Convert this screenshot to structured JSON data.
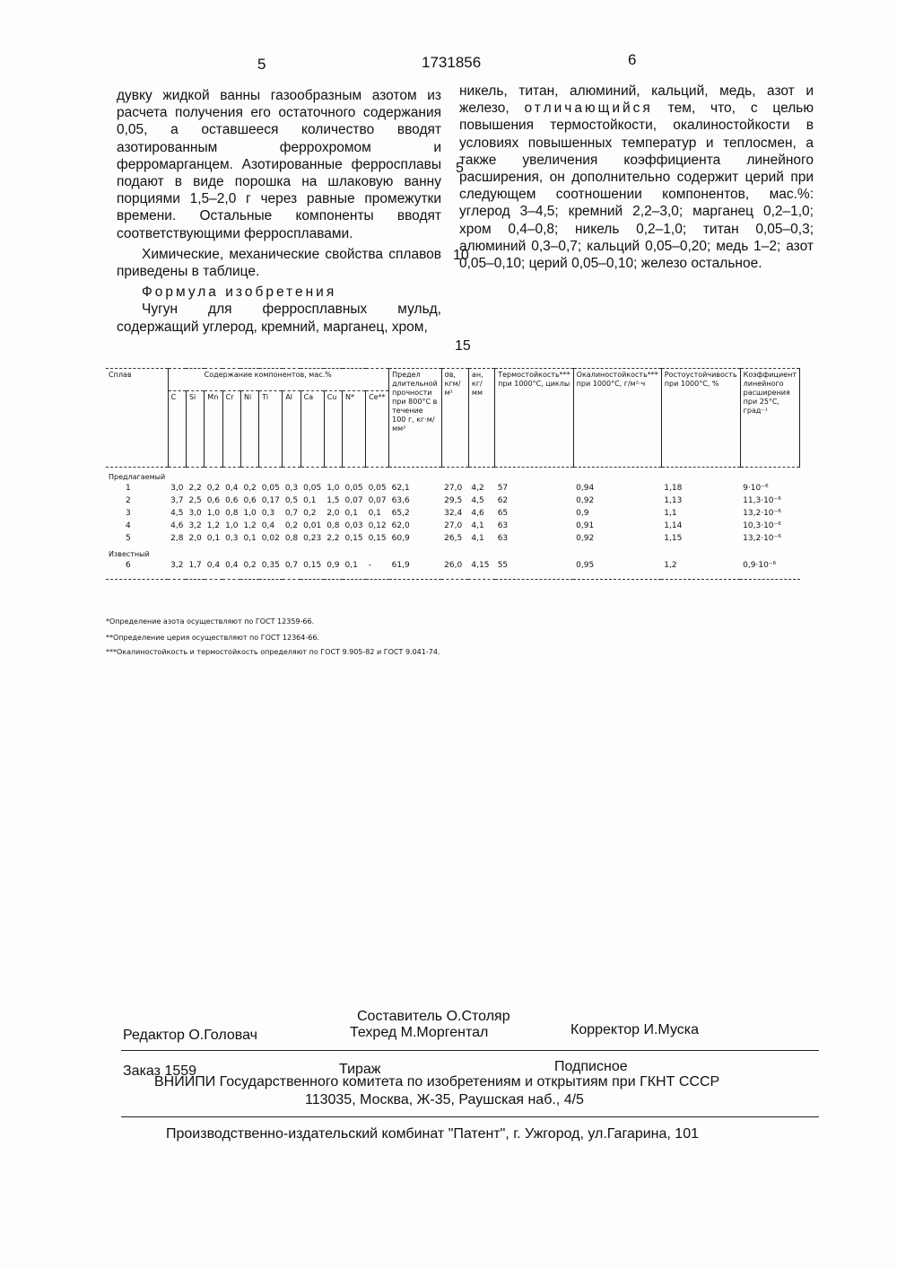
{
  "header": {
    "page_left": "5",
    "patent_number": "1731856",
    "page_right": "6"
  },
  "left_column": {
    "p1": "дувку жидкой ванны газообразным азотом из расчета получения его остаточного содержания 0,05, а оставшееся количество вводят азотированным феррохромом и ферромарганцем. Азотированные ферросплавы подают в виде порошка на шлаковую ванну порциями 1,5–2,0 г через равные промежутки времени. Остальные компоненты вводят соответствующими ферросплавами.",
    "p2": "Химические, механические свойства сплавов приведены в таблице.",
    "heading": "Формула изобретения",
    "p3": "Чугун для ферросплавных мульд, содержащий углерод, кремний, марганец, хром,"
  },
  "right_column": {
    "text_a": "никель, титан, алюминий, кальций, медь, азот и железо,",
    "distinguished": "отличающийся",
    "text_b": "тем, что, с целью повышения термостойкости, окалиностойкости в условиях повышенных температур и теплосмен, а также увеличения коэффициента линейного расширения, он дополнительно содержит церий при следующем соотношении компонентов, мас.%: углерод 3–4,5; кремний 2,2–3,0; марганец 0,2–1,0; хром 0,4–0,8; никель 0,2–1,0; титан 0,05–0,3; алюминий 0,3–0,7; кальций 0,05–0,20; медь 1–2; азот 0,05–0,10; церий 0,05–0,10; железо остальное."
  },
  "line_numbers": [
    "5",
    "10",
    "15"
  ],
  "table": {
    "col_alloy": "Сплав",
    "group_header": "Содержание компонентов, мас.%",
    "components": [
      "C",
      "Si",
      "Mn",
      "Cr",
      "Ni",
      "Ti",
      "Al",
      "Ca",
      "Cu",
      "N*",
      "Ce**"
    ],
    "props": [
      "Предел длительной прочности при 800°C в течение 100 г, кг·м/мм²",
      "σв, кгм/м²",
      "aн, кг/мм",
      "Термостойкость*** при 1000°C, циклы",
      "Окалиностойкость*** при 1000°C, г/м²·ч",
      "Ростоустойчивость при 1000°C, %",
      "Коэффициент линейного расширения при 25°C, град⁻¹"
    ],
    "group_proposed": "Предлагаемый",
    "group_known": "Известный",
    "rows": [
      {
        "id": "1",
        "values": [
          "3,0",
          "2,2",
          "0,2",
          "0,4",
          "0,2",
          "0,05",
          "0,3",
          "0,05",
          "1,0",
          "0,05",
          "0,05",
          "62,1",
          "27,0",
          "4,2",
          "57",
          "0,94",
          "1,18",
          "9·10⁻⁶"
        ]
      },
      {
        "id": "2",
        "values": [
          "3,7",
          "2,5",
          "0,6",
          "0,6",
          "0,6",
          "0,17",
          "0,5",
          "0,1",
          "1,5",
          "0,07",
          "0,07",
          "63,6",
          "29,5",
          "4,5",
          "62",
          "0,92",
          "1,13",
          "11,3·10⁻⁶"
        ]
      },
      {
        "id": "3",
        "values": [
          "4,5",
          "3,0",
          "1,0",
          "0,8",
          "1,0",
          "0,3",
          "0,7",
          "0,2",
          "2,0",
          "0,1",
          "0,1",
          "65,2",
          "32,4",
          "4,6",
          "65",
          "0,9",
          "1,1",
          "13,2·10⁻⁶"
        ]
      },
      {
        "id": "4",
        "values": [
          "4,6",
          "3,2",
          "1,2",
          "1,0",
          "1,2",
          "0,4",
          "0,2",
          "0,01",
          "0,8",
          "0,03",
          "0,12",
          "62,0",
          "27,0",
          "4,1",
          "63",
          "0,91",
          "1,14",
          "10,3·10⁻⁶"
        ]
      },
      {
        "id": "5",
        "values": [
          "2,8",
          "2,0",
          "0,1",
          "0,3",
          "0,1",
          "0,02",
          "0,8",
          "0,23",
          "2,2",
          "0,15",
          "0,15",
          "60,9",
          "26,5",
          "4,1",
          "63",
          "0,92",
          "1,15",
          "13,2·10⁻⁶"
        ]
      },
      {
        "id": "6",
        "values": [
          "3,2",
          "1,7",
          "0,4",
          "0,4",
          "0,2",
          "0,35",
          "0,7",
          "0,15",
          "0,9",
          "0,1",
          "-",
          "61,9",
          "26,0",
          "4,15",
          "55",
          "0,95",
          "1,2",
          "0,9·10⁻⁶"
        ]
      }
    ],
    "footnotes": [
      "*Определение азота осуществляют по ГОСТ 12359-66.",
      "**Определение церия осуществляют по ГОСТ 12364-66.",
      "***Окалиностойкость и термостойкость определяют по ГОСТ 9.905-82 и ГОСТ 9.041-74."
    ]
  },
  "colophon": {
    "compiler": "Составитель О.Столяр",
    "editor": "Редактор О.Головач",
    "techred": "Техред М.Моргентал",
    "corrector": "Корректор  И.Муска",
    "order": "Заказ 1559",
    "circulation": "Тираж",
    "subscription": "Подписное",
    "institute": "ВНИИПИ Государственного комитета по изобретениям и открытиям при ГКНТ СССР",
    "address": "113035, Москва, Ж-35, Раушская наб., 4/5",
    "publisher": "Производственно-издательский комбинат \"Патент\", г. Ужгород, ул.Гагарина, 101"
  }
}
